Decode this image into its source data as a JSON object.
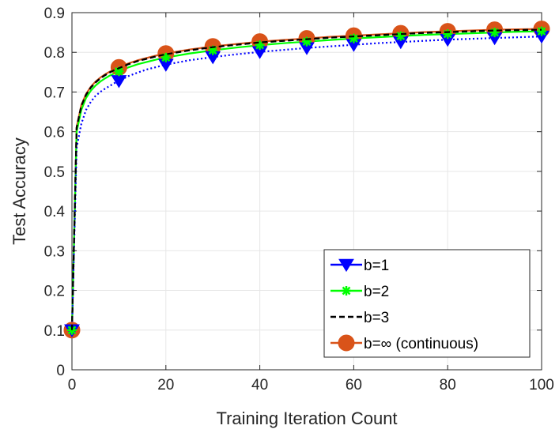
{
  "chart_data": {
    "type": "line",
    "xlabel": "Training Iteration Count",
    "ylabel": "Test Accuracy",
    "xlim": [
      0,
      100
    ],
    "ylim": [
      0,
      0.9
    ],
    "xticks": [
      "0",
      "20",
      "40",
      "60",
      "80",
      "100"
    ],
    "yticks": [
      "0",
      "0.1",
      "0.2",
      "0.3",
      "0.4",
      "0.5",
      "0.6",
      "0.7",
      "0.8",
      "0.9"
    ],
    "grid": true,
    "legend_position": "bottom-right",
    "marker_x": [
      0,
      10,
      20,
      30,
      40,
      50,
      60,
      70,
      80,
      90,
      100
    ],
    "curve_x": [
      0,
      1,
      2,
      3,
      4,
      5,
      6,
      7,
      8,
      9,
      10,
      12,
      14,
      16,
      18,
      20,
      25,
      30,
      35,
      40,
      45,
      50,
      55,
      60,
      65,
      70,
      75,
      80,
      85,
      90,
      95,
      100
    ],
    "series": [
      {
        "name": "b=1",
        "color": "#0000ff",
        "dash": "dotted",
        "marker": "triangle-down",
        "values": [
          0.1,
          0.56,
          0.62,
          0.655,
          0.675,
          0.69,
          0.7,
          0.708,
          0.715,
          0.722,
          0.728,
          0.74,
          0.749,
          0.757,
          0.763,
          0.769,
          0.78,
          0.788,
          0.795,
          0.801,
          0.806,
          0.811,
          0.815,
          0.819,
          0.823,
          0.826,
          0.829,
          0.832,
          0.834,
          0.836,
          0.838,
          0.84
        ]
      },
      {
        "name": "b=2",
        "color": "#00ff00",
        "dash": "solid",
        "marker": "star",
        "values": [
          0.1,
          0.6,
          0.655,
          0.685,
          0.703,
          0.716,
          0.726,
          0.734,
          0.741,
          0.747,
          0.752,
          0.762,
          0.77,
          0.776,
          0.782,
          0.787,
          0.797,
          0.805,
          0.812,
          0.818,
          0.823,
          0.827,
          0.831,
          0.835,
          0.838,
          0.841,
          0.844,
          0.846,
          0.848,
          0.85,
          0.852,
          0.853
        ]
      },
      {
        "name": "b=3",
        "color": "#000000",
        "dash": "dashed",
        "marker": "none",
        "values": [
          0.1,
          0.61,
          0.665,
          0.693,
          0.711,
          0.724,
          0.734,
          0.742,
          0.749,
          0.755,
          0.76,
          0.77,
          0.778,
          0.784,
          0.79,
          0.795,
          0.805,
          0.813,
          0.819,
          0.825,
          0.829,
          0.833,
          0.837,
          0.84,
          0.843,
          0.846,
          0.849,
          0.851,
          0.853,
          0.855,
          0.856,
          0.857
        ]
      },
      {
        "name": "b=∞ (continuous)",
        "color": "#d95319",
        "dash": "solid",
        "marker": "circle",
        "values": [
          0.1,
          0.612,
          0.667,
          0.695,
          0.713,
          0.726,
          0.736,
          0.744,
          0.751,
          0.757,
          0.762,
          0.772,
          0.78,
          0.786,
          0.792,
          0.797,
          0.807,
          0.815,
          0.821,
          0.827,
          0.831,
          0.835,
          0.839,
          0.842,
          0.845,
          0.848,
          0.851,
          0.853,
          0.855,
          0.857,
          0.858,
          0.859
        ]
      }
    ]
  }
}
